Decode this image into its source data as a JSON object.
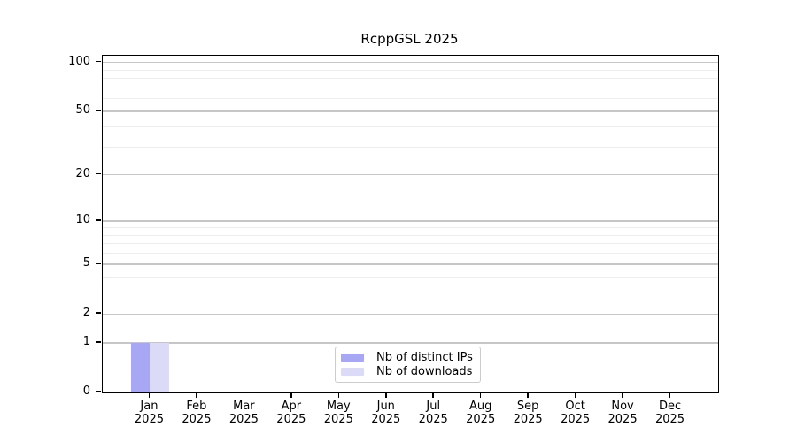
{
  "chart_data": {
    "type": "bar",
    "title": "RcppGSL 2025",
    "categories": [
      "Jan",
      "Feb",
      "Mar",
      "Apr",
      "May",
      "Jun",
      "Jul",
      "Aug",
      "Sep",
      "Oct",
      "Nov",
      "Dec"
    ],
    "x_year_label": "2025",
    "series": [
      {
        "name": "Nb of distinct IPs",
        "color": "#a7a7f4",
        "values": [
          1,
          0,
          0,
          0,
          0,
          0,
          0,
          0,
          0,
          0,
          0,
          0
        ]
      },
      {
        "name": "Nb of downloads",
        "color": "#dbdbf8",
        "values": [
          1,
          0,
          0,
          0,
          0,
          0,
          0,
          0,
          0,
          0,
          0,
          0
        ]
      }
    ],
    "xlabel": "",
    "ylabel": "",
    "y_scale": "log1p",
    "y_ticks_major": [
      0,
      1,
      2,
      5,
      10,
      20,
      50,
      100
    ],
    "y_ticks_minor": [
      3,
      4,
      6,
      7,
      8,
      9,
      30,
      40,
      60,
      70,
      80,
      90
    ],
    "ylim": [
      0,
      110
    ],
    "grid": true,
    "legend_position": "lower center",
    "bar_width_fraction": 0.4
  },
  "colors": {
    "background": "#ffffff",
    "spine": "#000000",
    "tick_label": "#000000",
    "grid_major": "#c6c6c6",
    "grid_minor": "#ededed",
    "legend_border": "#cccccc",
    "legend_background": "#ffffff"
  }
}
